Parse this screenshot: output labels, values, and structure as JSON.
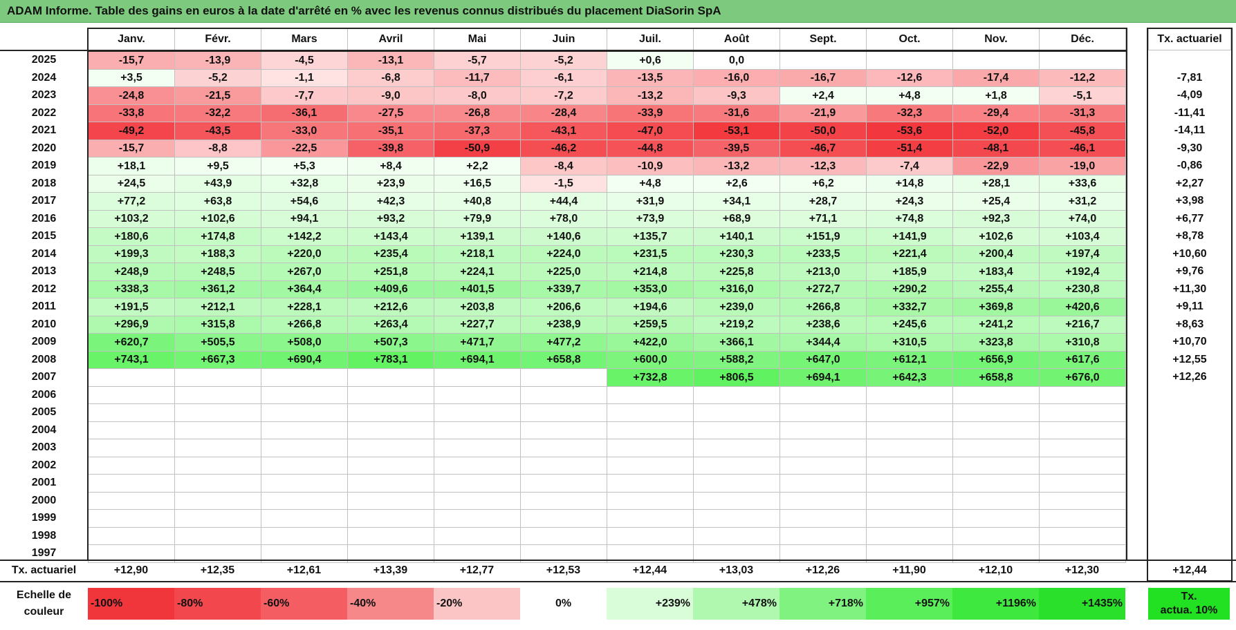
{
  "title": "ADAM Informe. Table des gains en euros à la date d'arrêté en % avec les revenus connus distribués du placement DiaSorin SpA",
  "months": [
    "Janv.",
    "Févr.",
    "Mars",
    "Avril",
    "Mai",
    "Juin",
    "Juil.",
    "Août",
    "Sept.",
    "Oct.",
    "Nov.",
    "Déc."
  ],
  "annual_header": "Tx. actuariel",
  "rows": [
    {
      "year": "2025",
      "values": [
        "-15,7",
        "-13,9",
        "-4,5",
        "-13,1",
        "-5,7",
        "-5,2",
        "+0,6",
        "0,0",
        "",
        "",
        "",
        ""
      ],
      "rate": ""
    },
    {
      "year": "2024",
      "values": [
        "+3,5",
        "-5,2",
        "-1,1",
        "-6,8",
        "-11,7",
        "-6,1",
        "-13,5",
        "-16,0",
        "-16,7",
        "-12,6",
        "-17,4",
        "-12,2"
      ],
      "rate": "-7,81"
    },
    {
      "year": "2023",
      "values": [
        "-24,8",
        "-21,5",
        "-7,7",
        "-9,0",
        "-8,0",
        "-7,2",
        "-13,2",
        "-9,3",
        "+2,4",
        "+4,8",
        "+1,8",
        "-5,1"
      ],
      "rate": "-4,09"
    },
    {
      "year": "2022",
      "values": [
        "-33,8",
        "-32,2",
        "-36,1",
        "-27,5",
        "-26,8",
        "-28,4",
        "-33,9",
        "-31,6",
        "-21,9",
        "-32,3",
        "-29,4",
        "-31,3"
      ],
      "rate": "-11,41"
    },
    {
      "year": "2021",
      "values": [
        "-49,2",
        "-43,5",
        "-33,0",
        "-35,1",
        "-37,3",
        "-43,1",
        "-47,0",
        "-53,1",
        "-50,0",
        "-53,6",
        "-52,0",
        "-45,8"
      ],
      "rate": "-14,11"
    },
    {
      "year": "2020",
      "values": [
        "-15,7",
        "-8,8",
        "-22,5",
        "-39,8",
        "-50,9",
        "-46,2",
        "-44,8",
        "-39,5",
        "-46,7",
        "-51,4",
        "-48,1",
        "-46,1"
      ],
      "rate": "-9,30"
    },
    {
      "year": "2019",
      "values": [
        "+18,1",
        "+9,5",
        "+5,3",
        "+8,4",
        "+2,2",
        "-8,4",
        "-10,9",
        "-13,2",
        "-12,3",
        "-7,4",
        "-22,9",
        "-19,0"
      ],
      "rate": "-0,86"
    },
    {
      "year": "2018",
      "values": [
        "+24,5",
        "+43,9",
        "+32,8",
        "+23,9",
        "+16,5",
        "-1,5",
        "+4,8",
        "+2,6",
        "+6,2",
        "+14,8",
        "+28,1",
        "+33,6"
      ],
      "rate": "+2,27"
    },
    {
      "year": "2017",
      "values": [
        "+77,2",
        "+63,8",
        "+54,6",
        "+42,3",
        "+40,8",
        "+44,4",
        "+31,9",
        "+34,1",
        "+28,7",
        "+24,3",
        "+25,4",
        "+31,2"
      ],
      "rate": "+3,98"
    },
    {
      "year": "2016",
      "values": [
        "+103,2",
        "+102,6",
        "+94,1",
        "+93,2",
        "+79,9",
        "+78,0",
        "+73,9",
        "+68,9",
        "+71,1",
        "+74,8",
        "+92,3",
        "+74,0"
      ],
      "rate": "+6,77"
    },
    {
      "year": "2015",
      "values": [
        "+180,6",
        "+174,8",
        "+142,2",
        "+143,4",
        "+139,1",
        "+140,6",
        "+135,7",
        "+140,1",
        "+151,9",
        "+141,9",
        "+102,6",
        "+103,4"
      ],
      "rate": "+8,78"
    },
    {
      "year": "2014",
      "values": [
        "+199,3",
        "+188,3",
        "+220,0",
        "+235,4",
        "+218,1",
        "+224,0",
        "+231,5",
        "+230,3",
        "+233,5",
        "+221,4",
        "+200,4",
        "+197,4"
      ],
      "rate": "+10,60"
    },
    {
      "year": "2013",
      "values": [
        "+248,9",
        "+248,5",
        "+267,0",
        "+251,8",
        "+224,1",
        "+225,0",
        "+214,8",
        "+225,8",
        "+213,0",
        "+185,9",
        "+183,4",
        "+192,4"
      ],
      "rate": "+9,76"
    },
    {
      "year": "2012",
      "values": [
        "+338,3",
        "+361,2",
        "+364,4",
        "+409,6",
        "+401,5",
        "+339,7",
        "+353,0",
        "+316,0",
        "+272,7",
        "+290,2",
        "+255,4",
        "+230,8"
      ],
      "rate": "+11,30"
    },
    {
      "year": "2011",
      "values": [
        "+191,5",
        "+212,1",
        "+228,1",
        "+212,6",
        "+203,8",
        "+206,6",
        "+194,6",
        "+239,0",
        "+266,8",
        "+332,7",
        "+369,8",
        "+420,6"
      ],
      "rate": "+9,11"
    },
    {
      "year": "2010",
      "values": [
        "+296,9",
        "+315,8",
        "+266,8",
        "+263,4",
        "+227,7",
        "+238,9",
        "+259,5",
        "+219,2",
        "+238,6",
        "+245,6",
        "+241,2",
        "+216,7"
      ],
      "rate": "+8,63"
    },
    {
      "year": "2009",
      "values": [
        "+620,7",
        "+505,5",
        "+508,0",
        "+507,3",
        "+471,7",
        "+477,2",
        "+422,0",
        "+366,1",
        "+344,4",
        "+310,5",
        "+323,8",
        "+310,8"
      ],
      "rate": "+10,70"
    },
    {
      "year": "2008",
      "values": [
        "+743,1",
        "+667,3",
        "+690,4",
        "+783,1",
        "+694,1",
        "+658,8",
        "+600,0",
        "+588,2",
        "+647,0",
        "+612,1",
        "+656,9",
        "+617,6"
      ],
      "rate": "+12,55"
    },
    {
      "year": "2007",
      "values": [
        "",
        "",
        "",
        "",
        "",
        "",
        "+732,8",
        "+806,5",
        "+694,1",
        "+642,3",
        "+658,8",
        "+676,0"
      ],
      "rate": "+12,26"
    },
    {
      "year": "2006",
      "values": [
        "",
        "",
        "",
        "",
        "",
        "",
        "",
        "",
        "",
        "",
        "",
        ""
      ],
      "rate": ""
    },
    {
      "year": "2005",
      "values": [
        "",
        "",
        "",
        "",
        "",
        "",
        "",
        "",
        "",
        "",
        "",
        ""
      ],
      "rate": ""
    },
    {
      "year": "2004",
      "values": [
        "",
        "",
        "",
        "",
        "",
        "",
        "",
        "",
        "",
        "",
        "",
        ""
      ],
      "rate": ""
    },
    {
      "year": "2003",
      "values": [
        "",
        "",
        "",
        "",
        "",
        "",
        "",
        "",
        "",
        "",
        "",
        ""
      ],
      "rate": ""
    },
    {
      "year": "2002",
      "values": [
        "",
        "",
        "",
        "",
        "",
        "",
        "",
        "",
        "",
        "",
        "",
        ""
      ],
      "rate": ""
    },
    {
      "year": "2001",
      "values": [
        "",
        "",
        "",
        "",
        "",
        "",
        "",
        "",
        "",
        "",
        "",
        ""
      ],
      "rate": ""
    },
    {
      "year": "2000",
      "values": [
        "",
        "",
        "",
        "",
        "",
        "",
        "",
        "",
        "",
        "",
        "",
        ""
      ],
      "rate": ""
    },
    {
      "year": "1999",
      "values": [
        "",
        "",
        "",
        "",
        "",
        "",
        "",
        "",
        "",
        "",
        "",
        ""
      ],
      "rate": ""
    },
    {
      "year": "1998",
      "values": [
        "",
        "",
        "",
        "",
        "",
        "",
        "",
        "",
        "",
        "",
        "",
        ""
      ],
      "rate": ""
    },
    {
      "year": "1997",
      "values": [
        "",
        "",
        "",
        "",
        "",
        "",
        "",
        "",
        "",
        "",
        "",
        ""
      ],
      "rate": ""
    }
  ],
  "footer": {
    "label": "Tx. actuariel",
    "values": [
      "+12,90",
      "+12,35",
      "+12,61",
      "+13,39",
      "+12,77",
      "+12,53",
      "+12,44",
      "+13,03",
      "+12,26",
      "+11,90",
      "+12,10",
      "+12,30"
    ],
    "total": "+12,44"
  },
  "scale": {
    "label_line1": "Echelle de",
    "label_line2": "couleur",
    "items": [
      {
        "text": "-100%",
        "color": "#f0353b"
      },
      {
        "text": "-80%",
        "color": "#f2474c"
      },
      {
        "text": "-60%",
        "color": "#f45e62"
      },
      {
        "text": "-40%",
        "color": "#f7888a"
      },
      {
        "text": "-20%",
        "color": "#fbc4c5"
      },
      {
        "text": "0%",
        "color": "#ffffff"
      },
      {
        "text": "+239%",
        "color": "#d9fcd9"
      },
      {
        "text": "+478%",
        "color": "#b0f8b0"
      },
      {
        "text": "+718%",
        "color": "#80f280"
      },
      {
        "text": "+957%",
        "color": "#5aee5a"
      },
      {
        "text": "+1196%",
        "color": "#3ee83e"
      },
      {
        "text": "+1435%",
        "color": "#2ae02a"
      }
    ],
    "annual_line1": "Tx.",
    "annual_line2": "actua. 10%",
    "annual_color": "#22e022"
  }
}
